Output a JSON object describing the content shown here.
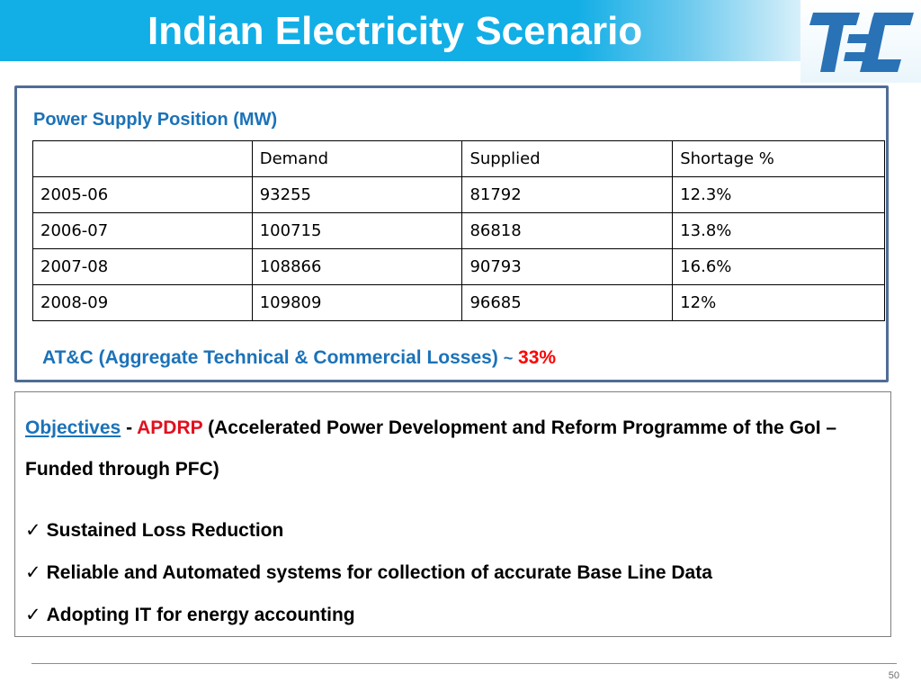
{
  "slide": {
    "title": "Indian Electricity Scenario",
    "page_number": "50"
  },
  "logo": {
    "text": "TEC",
    "color": "#2a72b6"
  },
  "supply_panel": {
    "heading": "Power Supply Position (MW)",
    "table": {
      "headers": [
        "",
        "Demand",
        "Supplied",
        "Shortage %"
      ],
      "rows": [
        [
          "2005-06",
          "93255",
          "81792",
          "12.3%"
        ],
        [
          "2006-07",
          "100715",
          "86818",
          "13.8%"
        ],
        [
          "2007-08",
          "108866",
          "90793",
          "16.6%"
        ],
        [
          "2008-09",
          "109809",
          "96685",
          "12%"
        ]
      ]
    },
    "losses": {
      "label": "AT&C (Aggregate Technical & Commercial Losses)",
      "tilde": "~",
      "value": "33%"
    }
  },
  "objectives_panel": {
    "keyword": "Objectives",
    "separator": " - ",
    "acronym": "APDRP",
    "description": " (Accelerated Power Development and Reform Programme of the GoI – Funded through PFC)",
    "check_glyph": "✓",
    "bullets": [
      "Sustained Loss Reduction",
      "Reliable and Automated systems for collection of accurate Base Line Data",
      "Adopting IT for energy accounting"
    ]
  },
  "colors": {
    "header_band": "#12aee6",
    "heading_blue": "#1b72b8",
    "highlight_red": "#ff0000",
    "panel_border": "#4f6d95"
  }
}
